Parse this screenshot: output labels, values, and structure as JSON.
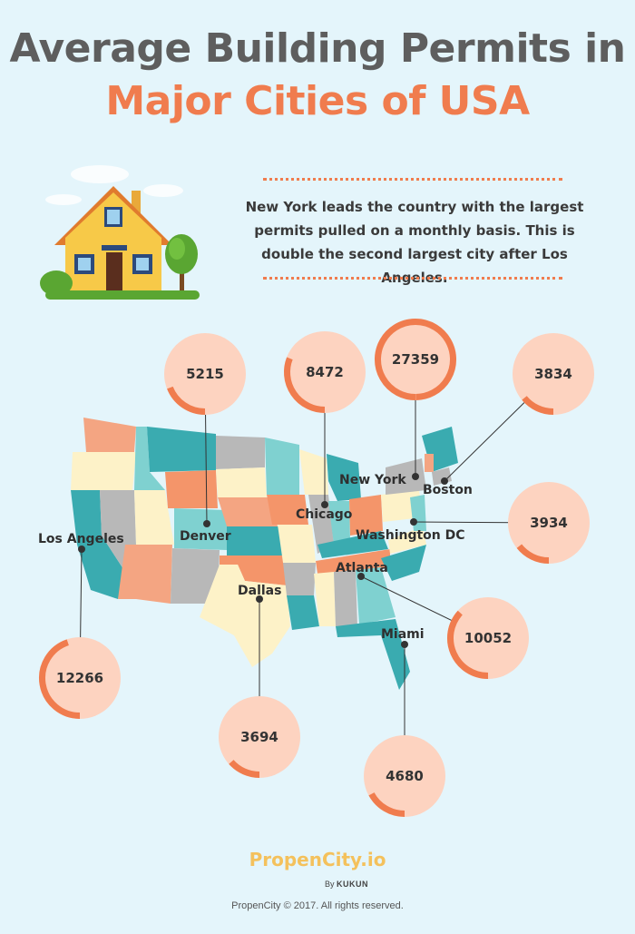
{
  "title_line1": "Average Building Permits in",
  "title_line2": "Major Cities of USA",
  "intro_text": "New York leads the country with the largest permits pulled on a monthly basis. This is double the second largest city after Los Angeles.",
  "colors": {
    "background": "#e4f5fb",
    "accent": "#f07c4e",
    "ring_fill": "#fdd3c0",
    "title_gray": "#5e5e5e",
    "state_teal": "#3aabb0",
    "state_light_teal": "#7fd1d0",
    "state_salmon": "#f4a582",
    "state_gray": "#b8b8b8",
    "state_cream": "#fdf2c8",
    "state_orange": "#f4956a"
  },
  "chart_data": {
    "type": "bubble-map",
    "title": "Average Building Permits in Major Cities of USA",
    "max_value": 27359,
    "points": [
      {
        "city": "New York",
        "value": 27359
      },
      {
        "city": "Los Angeles",
        "value": 12266
      },
      {
        "city": "Atlanta",
        "value": 10052
      },
      {
        "city": "Chicago",
        "value": 8472
      },
      {
        "city": "Denver",
        "value": 5215
      },
      {
        "city": "Miami",
        "value": 4680
      },
      {
        "city": "Washington DC",
        "value": 3934
      },
      {
        "city": "Boston",
        "value": 3834
      },
      {
        "city": "Dallas",
        "value": 3694
      }
    ]
  },
  "brand": {
    "name": "PropenCity.io",
    "by_prefix": "By",
    "by_company": "KUKUN"
  },
  "copyright": "PropenCity © 2017. All rights reserved."
}
